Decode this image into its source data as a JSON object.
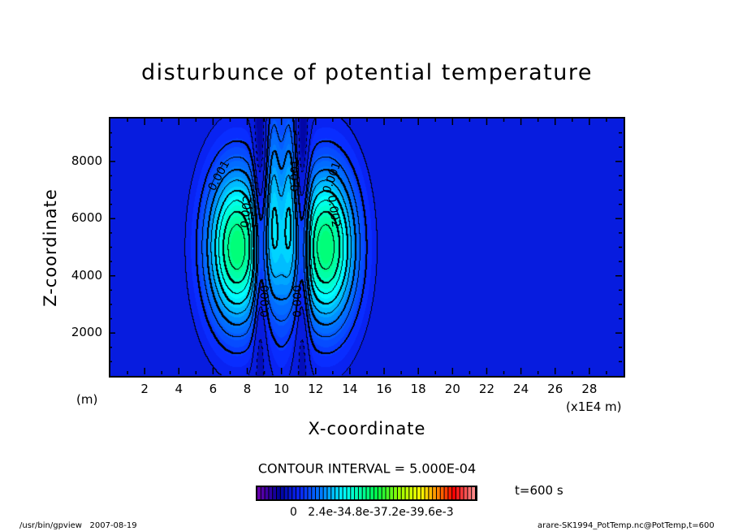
{
  "chart_data": {
    "type": "heatmap",
    "subtype": "filled-contour",
    "title": "disturbunce of potential temperature",
    "xlabel": "X-coordinate",
    "ylabel": "Z-coordinate",
    "x_unit_left": "(m)",
    "x_unit_right": "(x1E4 m)",
    "xlim": [
      0,
      30
    ],
    "ylim": [
      500,
      9500
    ],
    "xticks": [
      2,
      4,
      6,
      8,
      10,
      12,
      14,
      16,
      18,
      20,
      22,
      24,
      26,
      28
    ],
    "yticks": [
      2000,
      4000,
      6000,
      8000
    ],
    "contour_interval_text": "CONTOUR INTERVAL = 5.000E-04",
    "contour_interval": 0.0005,
    "contour_labels": [
      "0.001",
      "0.002",
      "0.000",
      "0.001",
      "0.000",
      "0.001",
      "0.002"
    ],
    "colorbar": {
      "vmin": -0.0021,
      "vmax": 0.0109,
      "segments": 56,
      "labels_text": "0   2.4e-34.8e-37.2e-39.6e-3"
    },
    "time_label": "t=600 s",
    "field_model": [
      {
        "x": 7.4,
        "z": 5000,
        "sx": 1.25,
        "sz": 1950,
        "amp": 0.0046
      },
      {
        "x": 12.6,
        "z": 5000,
        "sx": 1.25,
        "sz": 1950,
        "amp": 0.0046
      },
      {
        "x": 8.75,
        "z": 5600,
        "sx": 0.28,
        "sz": 3600,
        "amp": -0.0016
      },
      {
        "x": 11.25,
        "z": 5600,
        "sx": 0.28,
        "sz": 3600,
        "amp": -0.0016
      },
      {
        "x": 9.55,
        "z": 7000,
        "sx": 0.32,
        "sz": 2600,
        "amp": 0.0016
      },
      {
        "x": 10.45,
        "z": 7000,
        "sx": 0.32,
        "sz": 2600,
        "amp": 0.0016
      },
      {
        "x": 10.0,
        "z": 4000,
        "sx": 0.35,
        "sz": 2400,
        "amp": 0.0007
      }
    ]
  },
  "footer": {
    "left": "/usr/bin/gpview   2007-08-19",
    "right": "arare-SK1994_PotTemp.nc@PotTemp,t=600"
  }
}
